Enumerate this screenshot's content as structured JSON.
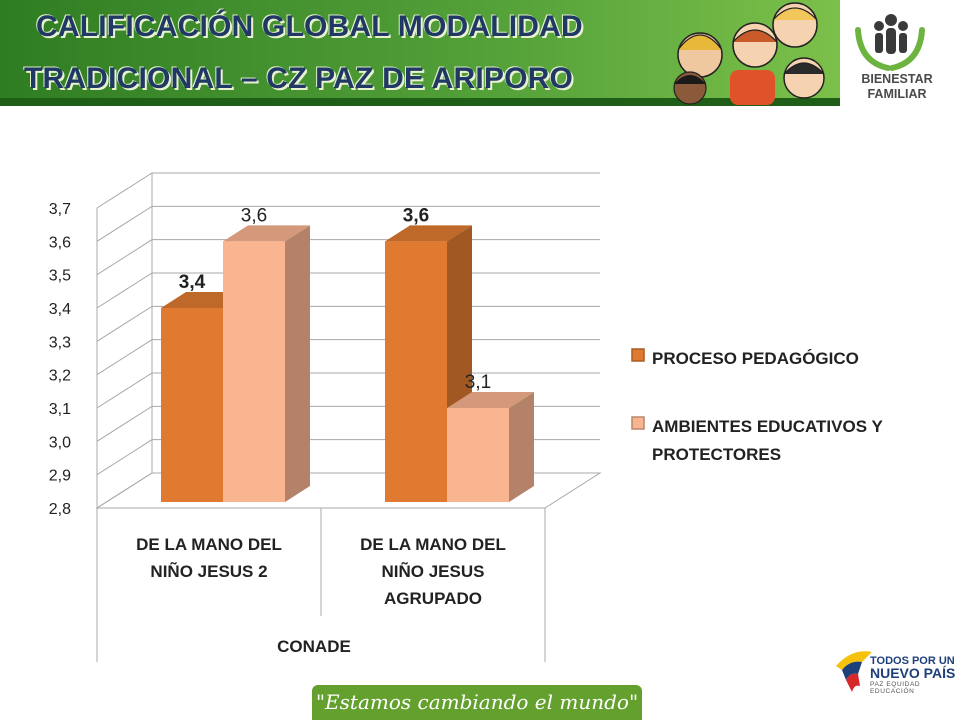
{
  "header": {
    "title_line1": "CALIFICACIÓN GLOBAL MODALIDAD",
    "title_line2": "TRADICIONAL – CZ  PAZ DE ARIPORO",
    "brand": "BIENESTAR FAMILIAR",
    "colors": {
      "banner": "#3b8a2a",
      "title": "#1f3864"
    }
  },
  "footer": {
    "slogan": "\"Estamos cambiando el mundo\"",
    "logo_line1": "TODOS POR UN",
    "logo_line2": "NUEVO PAÍS",
    "logo_tagline": "PAZ  EQUIDAD  EDUCACIÓN"
  },
  "chart_data": {
    "type": "bar",
    "title": "",
    "categories": [
      "DE LA MANO DEL NIÑO JESUS 2",
      "DE LA MANO DEL NIÑO JESUS AGRUPADO"
    ],
    "category_lines": [
      [
        "DE LA MANO DEL",
        "NIÑO JESUS 2"
      ],
      [
        "DE LA MANO DEL",
        "NIÑO JESUS",
        "AGRUPADO"
      ]
    ],
    "group_label": "CONADE",
    "series": [
      {
        "name": "PROCESO PEDAGÓGICO",
        "values": [
          3.4,
          3.6
        ],
        "labels": [
          "3,4",
          "3,6"
        ],
        "color": "#e07a30"
      },
      {
        "name": "AMBIENTES EDUCATIVOS Y PROTECTORES",
        "values": [
          3.6,
          3.1
        ],
        "labels": [
          "3,6",
          "3,1"
        ],
        "color": "#f9b490"
      }
    ],
    "legend_lines": [
      [
        "PROCESO PEDAGÓGICO"
      ],
      [
        "AMBIENTES EDUCATIVOS Y",
        "PROTECTORES"
      ]
    ],
    "ylim": [
      2.8,
      3.7
    ],
    "yticks": [
      "2,8",
      "2,9",
      "3,0",
      "3,1",
      "3,2",
      "3,3",
      "3,4",
      "3,5",
      "3,6",
      "3,7"
    ],
    "grid": true,
    "legend_position": "right"
  }
}
